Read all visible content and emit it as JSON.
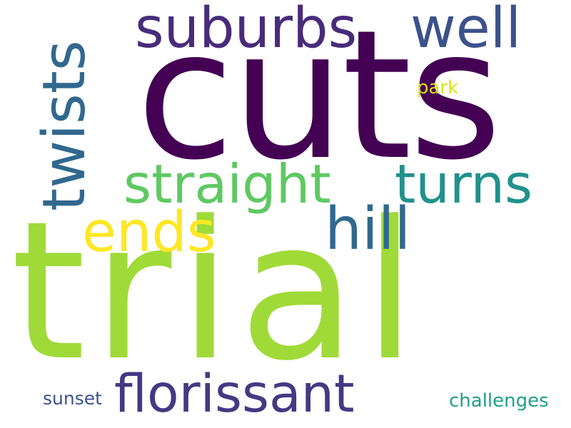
{
  "words": [
    {
      "id": "cuts",
      "text": "cuts",
      "color": "#440154"
    },
    {
      "id": "trial",
      "text": "trial",
      "color": "#a0da39"
    },
    {
      "id": "suburbs",
      "text": "suburbs",
      "color": "#472c7a"
    },
    {
      "id": "well",
      "text": "well",
      "color": "#3b528b"
    },
    {
      "id": "twists",
      "text": "twists",
      "color": "#31688e"
    },
    {
      "id": "straight",
      "text": "straight",
      "color": "#5ec962"
    },
    {
      "id": "turns",
      "text": "turns",
      "color": "#21918c"
    },
    {
      "id": "ends",
      "text": "ends",
      "color": "#fde725"
    },
    {
      "id": "hill",
      "text": "hill",
      "color": "#31688e"
    },
    {
      "id": "park",
      "text": "park",
      "color": "#d8e219"
    },
    {
      "id": "florissant",
      "text": "florissant",
      "color": "#443983"
    },
    {
      "id": "sunset",
      "text": "sunset",
      "color": "#3b528b"
    },
    {
      "id": "challenges",
      "text": "challenges",
      "color": "#1fa187"
    }
  ]
}
